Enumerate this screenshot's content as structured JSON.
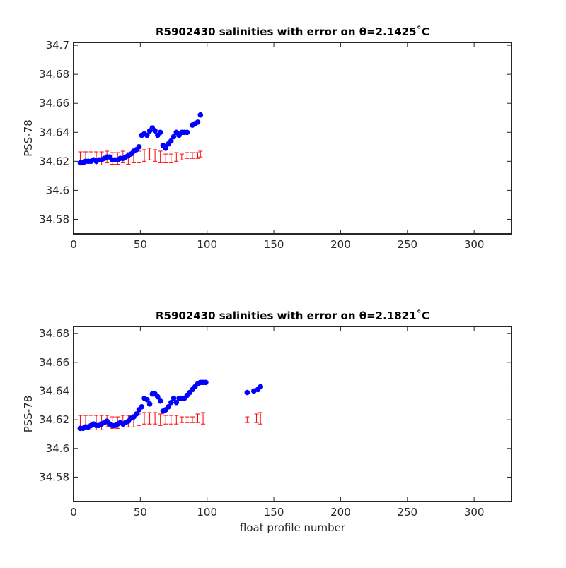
{
  "chart_data": [
    {
      "type": "scatter",
      "title": "R5902430 salinities with error on θ=2.1425˚C",
      "ylabel": "PSS-78",
      "xlim": [
        0,
        328
      ],
      "ylim": [
        34.57,
        34.702
      ],
      "xticks": [
        0,
        50,
        100,
        150,
        200,
        250,
        300
      ],
      "yticks": [
        34.58,
        34.6,
        34.62,
        34.64,
        34.66,
        34.68,
        34.7
      ],
      "series": [
        {
          "color": "#ff0000",
          "x": [
            5,
            9,
            13,
            17,
            21,
            25,
            29,
            33,
            37,
            41,
            45,
            49,
            53,
            57,
            61,
            65,
            69,
            73,
            77,
            81,
            85,
            89,
            93,
            95
          ],
          "values": [
            34.622,
            34.622,
            34.622,
            34.622,
            34.622,
            34.623,
            34.622,
            34.622,
            34.623,
            34.622,
            34.623,
            34.623,
            34.624,
            34.625,
            34.624,
            34.623,
            34.622,
            34.622,
            34.623,
            34.623,
            34.624,
            34.624,
            34.624,
            34.625
          ],
          "errors": [
            0.0045,
            0.0045,
            0.0045,
            0.0045,
            0.0045,
            0.004,
            0.004,
            0.004,
            0.004,
            0.004,
            0.004,
            0.004,
            0.004,
            0.004,
            0.004,
            0.004,
            0.003,
            0.003,
            0.003,
            0.002,
            0.002,
            0.002,
            0.002,
            0.002
          ]
        },
        {
          "color": "#0000ff",
          "x": [
            5,
            7,
            9,
            11,
            13,
            15,
            17,
            19,
            21,
            23,
            25,
            27,
            29,
            31,
            33,
            35,
            37,
            39,
            41,
            43,
            45,
            47,
            49,
            51,
            53,
            55,
            57,
            59,
            61,
            63,
            65,
            67,
            69,
            71,
            73,
            75,
            77,
            79,
            81,
            83,
            85,
            89,
            91,
            93,
            95
          ],
          "values": [
            34.619,
            34.619,
            34.62,
            34.62,
            34.62,
            34.621,
            34.62,
            34.621,
            34.621,
            34.622,
            34.623,
            34.623,
            34.621,
            34.621,
            34.621,
            34.622,
            34.622,
            34.623,
            34.624,
            34.625,
            34.627,
            34.628,
            34.63,
            34.638,
            34.639,
            34.638,
            34.641,
            34.643,
            34.641,
            34.638,
            34.64,
            34.631,
            34.629,
            34.632,
            34.634,
            34.637,
            34.64,
            34.638,
            34.64,
            34.64,
            34.64,
            34.645,
            34.646,
            34.647,
            34.652
          ]
        }
      ]
    },
    {
      "type": "scatter",
      "title": "R5902430 salinities with error on θ=2.1821˚C",
      "ylabel": "PSS-78",
      "xlabel": "float profile number",
      "xlim": [
        0,
        328
      ],
      "ylim": [
        34.563,
        34.685
      ],
      "xticks": [
        0,
        50,
        100,
        150,
        200,
        250,
        300
      ],
      "yticks": [
        34.58,
        34.6,
        34.62,
        34.64,
        34.66,
        34.68
      ],
      "series": [
        {
          "color": "#ff0000",
          "x": [
            5,
            9,
            13,
            17,
            21,
            25,
            29,
            33,
            37,
            41,
            45,
            49,
            53,
            57,
            61,
            65,
            69,
            73,
            77,
            81,
            85,
            89,
            93,
            97,
            130,
            137,
            140
          ],
          "values": [
            34.618,
            34.618,
            34.618,
            34.618,
            34.618,
            34.619,
            34.618,
            34.618,
            34.619,
            34.619,
            34.619,
            34.62,
            34.621,
            34.621,
            34.621,
            34.62,
            34.62,
            34.62,
            34.62,
            34.62,
            34.62,
            34.62,
            34.621,
            34.621,
            34.62,
            34.621,
            34.621
          ],
          "errors": [
            0.005,
            0.005,
            0.005,
            0.005,
            0.005,
            0.004,
            0.004,
            0.004,
            0.004,
            0.004,
            0.004,
            0.004,
            0.004,
            0.004,
            0.004,
            0.004,
            0.003,
            0.003,
            0.003,
            0.002,
            0.002,
            0.002,
            0.003,
            0.004,
            0.002,
            0.003,
            0.004
          ]
        },
        {
          "color": "#0000ff",
          "x": [
            5,
            7,
            9,
            11,
            13,
            15,
            17,
            19,
            21,
            23,
            25,
            27,
            29,
            31,
            33,
            35,
            37,
            39,
            41,
            43,
            45,
            47,
            49,
            51,
            53,
            55,
            57,
            59,
            61,
            63,
            65,
            67,
            69,
            71,
            73,
            75,
            77,
            79,
            81,
            83,
            85,
            87,
            89,
            91,
            93,
            95,
            97,
            99,
            130,
            135,
            138,
            140
          ],
          "values": [
            34.614,
            34.614,
            34.615,
            34.615,
            34.616,
            34.617,
            34.616,
            34.616,
            34.617,
            34.618,
            34.619,
            34.617,
            34.616,
            34.616,
            34.617,
            34.618,
            34.617,
            34.618,
            34.619,
            34.621,
            34.622,
            34.624,
            34.627,
            34.629,
            34.635,
            34.634,
            34.631,
            34.638,
            34.638,
            34.636,
            34.633,
            34.626,
            34.627,
            34.629,
            34.632,
            34.635,
            34.632,
            34.635,
            34.635,
            34.635,
            34.637,
            34.639,
            34.641,
            34.643,
            34.645,
            34.646,
            34.646,
            34.646,
            34.639,
            34.64,
            34.641,
            34.643
          ]
        }
      ]
    }
  ]
}
